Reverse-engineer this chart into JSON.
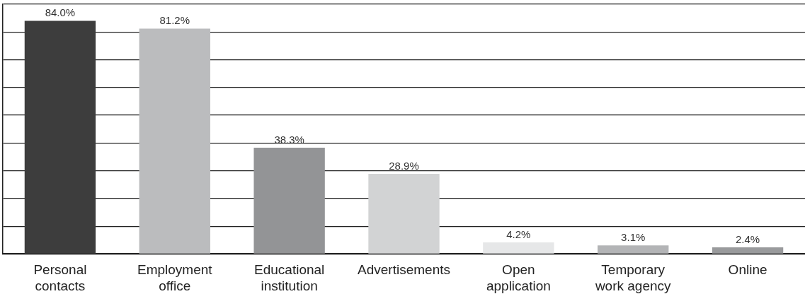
{
  "chart_data": {
    "type": "bar",
    "categories": [
      "Personal contacts",
      "Employment office",
      "Educational institution",
      "Advertisements",
      "Open application",
      "Temporary work agency",
      "Online"
    ],
    "values": [
      84.0,
      81.2,
      38.3,
      28.9,
      4.2,
      3.1,
      2.4
    ],
    "colors": [
      "#3d3d3d",
      "#bbbcbe",
      "#939496",
      "#d2d3d4",
      "#e6e7e8",
      "#b3b4b6",
      "#999a9c"
    ],
    "value_labels": [
      "84.0%",
      "81.2%",
      "38.3%",
      "28.9%",
      "4.2%",
      "3.1%",
      "2.4%"
    ],
    "grid": "y",
    "tick_labels": "x",
    "legend": false
  }
}
